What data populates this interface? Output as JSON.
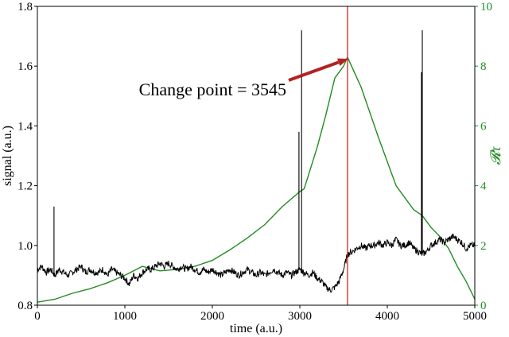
{
  "chart_data": {
    "type": "line",
    "title": "",
    "xlabel": "time (a.u.)",
    "ylabel": "signal (a.u.)",
    "y2label": "𝓡τ",
    "xlim": [
      0,
      5000
    ],
    "ylim": [
      0.8,
      1.8
    ],
    "y2lim": [
      0,
      10
    ],
    "x_ticks": [
      "0",
      "1000",
      "2000",
      "3000",
      "4000",
      "5000"
    ],
    "y_ticks": [
      "0.8",
      "1.0",
      "1.2",
      "1.4",
      "1.6",
      "1.8"
    ],
    "y2_ticks": [
      "0",
      "2",
      "4",
      "6",
      "8",
      "10"
    ],
    "grid": false,
    "colors": {
      "signal": "#000000",
      "r_tau": "#228B22",
      "change_line": "#d62728",
      "arrow": "#b22222"
    },
    "series": [
      {
        "axis": "left",
        "x": [
          0,
          50,
          100,
          150,
          200,
          250,
          300,
          350,
          400,
          450,
          500,
          550,
          600,
          650,
          700,
          750,
          800,
          850,
          900,
          950,
          1000,
          1050,
          1100,
          1150,
          1200,
          1250,
          1300,
          1350,
          1400,
          1450,
          1500,
          1550,
          1600,
          1650,
          1700,
          1750,
          1800,
          1850,
          1900,
          1950,
          2000,
          2050,
          2100,
          2150,
          2200,
          2250,
          2300,
          2350,
          2400,
          2450,
          2500,
          2550,
          2600,
          2650,
          2700,
          2750,
          2800,
          2850,
          2900,
          2950,
          3000,
          3050,
          3100,
          3150,
          3200,
          3250,
          3300,
          3350,
          3400,
          3450,
          3500,
          3545,
          3600,
          3650,
          3700,
          3750,
          3800,
          3850,
          3900,
          3950,
          4000,
          4050,
          4100,
          4150,
          4200,
          4250,
          4300,
          4350,
          4400,
          4450,
          4500,
          4550,
          4600,
          4650,
          4700,
          4750,
          4800,
          4850,
          4900,
          4950,
          5000
        ],
        "y": [
          0.92,
          0.93,
          0.91,
          0.92,
          0.9,
          0.92,
          0.91,
          0.9,
          0.91,
          0.92,
          0.93,
          0.91,
          0.92,
          0.91,
          0.91,
          0.92,
          0.9,
          0.92,
          0.91,
          0.9,
          0.89,
          0.87,
          0.9,
          0.89,
          0.91,
          0.92,
          0.92,
          0.93,
          0.94,
          0.93,
          0.94,
          0.93,
          0.92,
          0.93,
          0.92,
          0.93,
          0.92,
          0.91,
          0.92,
          0.91,
          0.92,
          0.91,
          0.9,
          0.91,
          0.92,
          0.91,
          0.9,
          0.91,
          0.92,
          0.91,
          0.9,
          0.91,
          0.9,
          0.91,
          0.92,
          0.91,
          0.9,
          0.91,
          0.9,
          0.91,
          0.92,
          0.91,
          0.9,
          0.91,
          0.89,
          0.88,
          0.86,
          0.85,
          0.86,
          0.88,
          0.92,
          0.97,
          0.98,
          0.99,
          1.0,
          0.99,
          1.0,
          1.0,
          1.01,
          1.0,
          1.01,
          1.0,
          1.02,
          1.0,
          1.0,
          1.01,
          0.99,
          0.98,
          0.97,
          0.98,
          1.0,
          1.01,
          1.02,
          1.01,
          1.02,
          1.03,
          1.02,
          1.01,
          0.99,
          1.0,
          1.0
        ]
      },
      {
        "axis": "right",
        "x": [
          0,
          200,
          400,
          600,
          800,
          1000,
          1200,
          1400,
          1600,
          1800,
          2000,
          2200,
          2400,
          2600,
          2800,
          3000,
          3050,
          3200,
          3300,
          3400,
          3500,
          3545,
          3700,
          3900,
          4100,
          4300,
          4400,
          4500,
          4600,
          4700,
          4800,
          4900,
          5000
        ],
        "y": [
          0.1,
          0.2,
          0.4,
          0.55,
          0.75,
          1.0,
          1.3,
          1.15,
          1.2,
          1.3,
          1.5,
          1.85,
          2.25,
          2.7,
          3.3,
          3.8,
          3.9,
          5.3,
          6.4,
          7.6,
          8.0,
          8.3,
          7.3,
          5.6,
          4.0,
          3.2,
          3.0,
          2.6,
          2.3,
          1.9,
          1.3,
          0.8,
          0.2
        ]
      }
    ],
    "spikes": [
      {
        "x": 190,
        "y": 1.13
      },
      {
        "x": 2990,
        "y": 1.38
      },
      {
        "x": 3020,
        "y": 1.72
      },
      {
        "x": 4390,
        "y": 1.58
      },
      {
        "x": 4400,
        "y": 1.72
      }
    ],
    "change_point": 3545,
    "annotation": "Change point = 3545"
  }
}
